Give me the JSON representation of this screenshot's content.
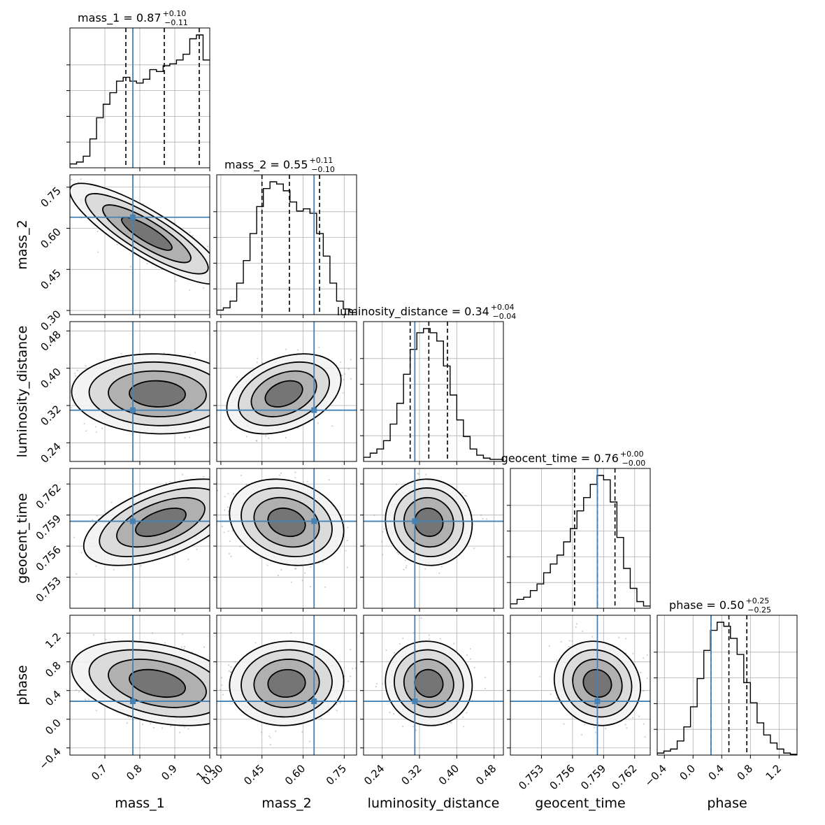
{
  "figure": {
    "type": "corner-plot",
    "colors": {
      "truth": "#4682b4",
      "hist": "#000000",
      "contour": "#000000",
      "grid": "#b0b0b0",
      "scatter": "#777777"
    }
  },
  "chart_data": {
    "type": "corner",
    "parameters": [
      {
        "name": "mass_1",
        "xlabel": "mass_1",
        "ylabel": "",
        "title": "mass_1 = 0.87",
        "sup": "+0.10",
        "sub": "−0.11",
        "range": [
          0.6,
          1.0
        ],
        "ticks": [
          0.7,
          0.8,
          0.9,
          1.0
        ],
        "tick_labels": [
          "0.7",
          "0.8",
          "0.9",
          "1.0"
        ],
        "quantiles": [
          0.76,
          0.87,
          0.97
        ],
        "truth": 0.78,
        "hist": [
          0.2,
          0.3,
          0.6,
          1.5,
          2.6,
          3.3,
          3.9,
          4.5,
          4.7,
          4.5,
          4.4,
          4.6,
          5.1,
          5.0,
          5.3,
          5.4,
          5.6,
          5.9,
          6.7,
          6.9,
          5.6
        ]
      },
      {
        "name": "mass_2",
        "xlabel": "mass_2",
        "ylabel": "mass_2",
        "title": "mass_2 = 0.55",
        "sup": "+0.11",
        "sub": "−0.10",
        "range": [
          0.285,
          0.795
        ],
        "ticks": [
          0.3,
          0.45,
          0.6,
          0.75
        ],
        "tick_labels": [
          "0.30",
          "0.45",
          "0.60",
          "0.75"
        ],
        "quantiles": [
          0.45,
          0.55,
          0.66
        ],
        "truth": 0.64,
        "hist": [
          0.2,
          0.3,
          0.6,
          1.4,
          2.4,
          3.6,
          4.8,
          5.6,
          5.9,
          5.8,
          5.5,
          5.0,
          4.6,
          4.7,
          4.5,
          3.6,
          2.6,
          1.4,
          0.6,
          0.25,
          0.1
        ]
      },
      {
        "name": "luminosity_distance",
        "xlabel": "luminosity_distance",
        "ylabel": "luminosity_distance",
        "title": "luminosity_distance = 0.34",
        "sup": "+0.04",
        "sub": "−0.04",
        "range": [
          0.2,
          0.5
        ],
        "ticks": [
          0.24,
          0.32,
          0.4,
          0.48
        ],
        "tick_labels": [
          "0.24",
          "0.32",
          "0.40",
          "0.48"
        ],
        "quantiles": [
          0.3,
          0.34,
          0.38
        ],
        "truth": 0.31,
        "hist": [
          0.1,
          0.2,
          0.3,
          0.5,
          0.9,
          1.4,
          2.1,
          2.7,
          3.1,
          3.2,
          3.1,
          2.9,
          2.3,
          1.6,
          1.0,
          0.6,
          0.3,
          0.15,
          0.08,
          0.05,
          0.05
        ]
      },
      {
        "name": "geocent_time",
        "xlabel": "geocent_time",
        "ylabel": "geocent_time",
        "title": "geocent_time = 0.76",
        "sup": "+0.00",
        "sub": "−0.00",
        "range": [
          0.75,
          0.7635
        ],
        "ticks": [
          0.753,
          0.756,
          0.759,
          0.762
        ],
        "tick_labels": [
          "0.753",
          "0.756",
          "0.759",
          "0.762"
        ],
        "quantiles": [
          0.7562,
          0.7584,
          0.7601
        ],
        "truth": 0.7584,
        "hist": [
          0.1,
          0.2,
          0.25,
          0.4,
          0.55,
          0.8,
          1.0,
          1.2,
          1.5,
          1.8,
          2.2,
          2.5,
          2.8,
          3.0,
          2.9,
          2.4,
          1.6,
          0.9,
          0.45,
          0.15,
          0.05
        ]
      },
      {
        "name": "phase",
        "xlabel": "phase",
        "ylabel": "phase",
        "title": "phase = 0.50",
        "sup": "+0.25",
        "sub": "−0.25",
        "range": [
          -0.5,
          1.45
        ],
        "ticks": [
          -0.4,
          0.0,
          0.4,
          0.8,
          1.2
        ],
        "tick_labels": [
          "−0.4",
          "0.0",
          "0.4",
          "0.8",
          "1.2"
        ],
        "quantiles": [
          0.25,
          0.5,
          0.75
        ],
        "truth": 0.25,
        "hist": [
          0.05,
          0.1,
          0.15,
          0.35,
          0.7,
          1.2,
          1.9,
          2.6,
          3.1,
          3.3,
          3.2,
          2.9,
          2.5,
          1.8,
          1.3,
          0.8,
          0.5,
          0.3,
          0.15,
          0.05,
          0.02
        ]
      }
    ],
    "pairs": [
      {
        "row": 1,
        "col": 0,
        "center": [
          0.82,
          0.58
        ],
        "sigma": [
          0.09,
          0.075
        ],
        "rho": -0.85
      },
      {
        "row": 2,
        "col": 0,
        "center": [
          0.85,
          0.345
        ],
        "sigma": [
          0.1,
          0.035
        ],
        "rho": -0.05
      },
      {
        "row": 2,
        "col": 1,
        "center": [
          0.53,
          0.345
        ],
        "sigma": [
          0.085,
          0.035
        ],
        "rho": 0.35
      },
      {
        "row": 3,
        "col": 0,
        "center": [
          0.86,
          0.7583
        ],
        "sigma": [
          0.09,
          0.0017
        ],
        "rho": 0.55
      },
      {
        "row": 3,
        "col": 1,
        "center": [
          0.54,
          0.7583
        ],
        "sigma": [
          0.085,
          0.0017
        ],
        "rho": -0.2
      },
      {
        "row": 3,
        "col": 2,
        "center": [
          0.34,
          0.7583
        ],
        "sigma": [
          0.038,
          0.0017
        ],
        "rho": -0.05
      },
      {
        "row": 4,
        "col": 0,
        "center": [
          0.85,
          0.5
        ],
        "sigma": [
          0.1,
          0.24
        ],
        "rho": -0.35
      },
      {
        "row": 4,
        "col": 1,
        "center": [
          0.54,
          0.5
        ],
        "sigma": [
          0.085,
          0.24
        ],
        "rho": 0.05
      },
      {
        "row": 4,
        "col": 2,
        "center": [
          0.34,
          0.5
        ],
        "sigma": [
          0.038,
          0.24
        ],
        "rho": -0.05
      },
      {
        "row": 4,
        "col": 3,
        "center": [
          0.7584,
          0.5
        ],
        "sigma": [
          0.0017,
          0.24
        ],
        "rho": -0.1
      }
    ]
  }
}
